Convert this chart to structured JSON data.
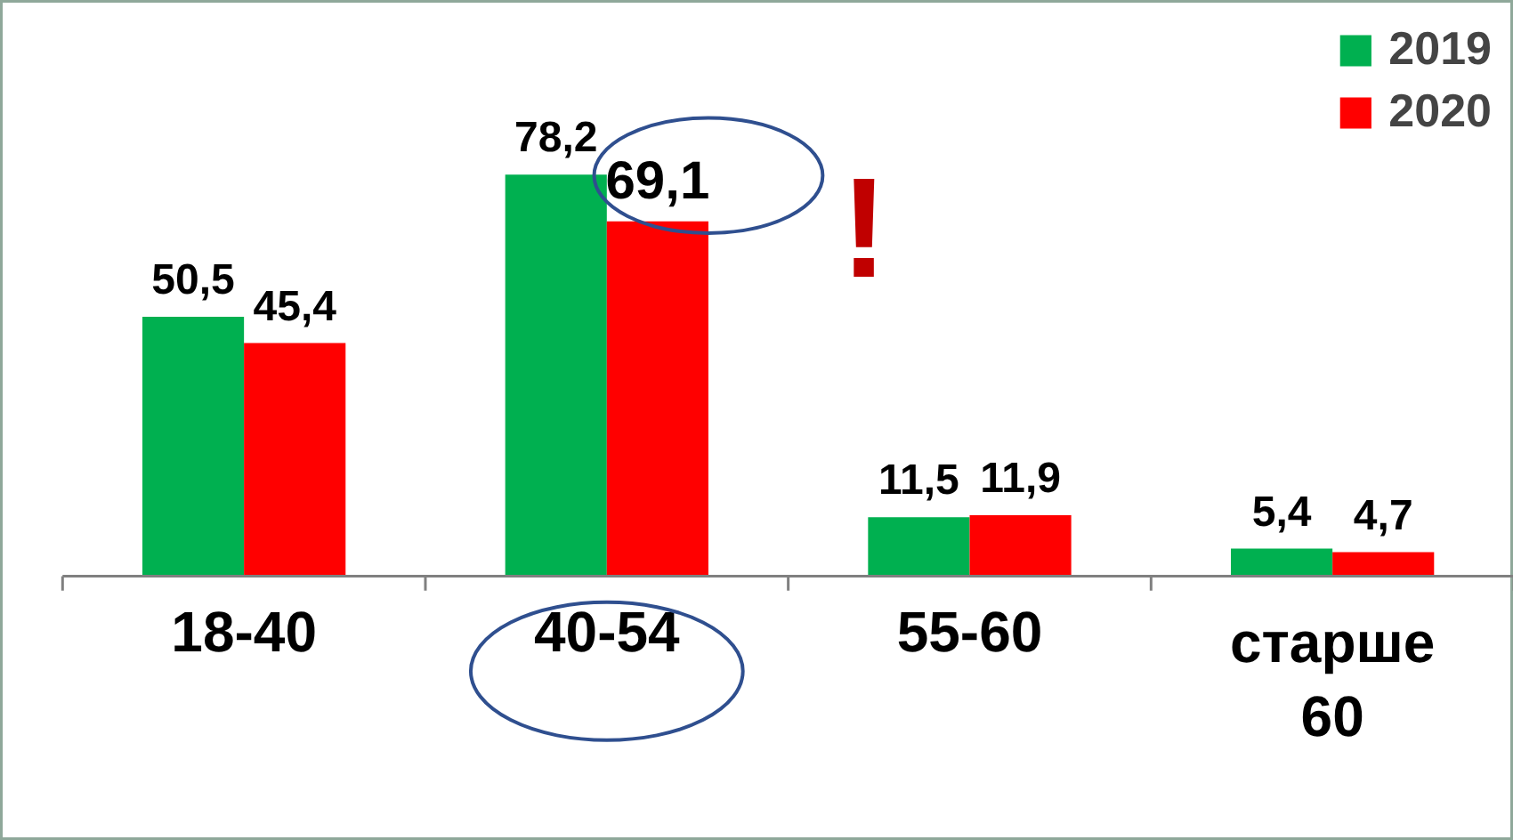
{
  "chart_data": {
    "type": "bar",
    "categories": [
      "18-40",
      "40-54",
      "55-60",
      "старше 60"
    ],
    "series": [
      {
        "name": "2019",
        "color": "#00b050",
        "values": [
          50.5,
          78.2,
          11.5,
          5.4
        ],
        "value_labels": [
          "50,5",
          "78,2",
          "11,5",
          "5,4"
        ]
      },
      {
        "name": "2020",
        "color": "#ff0000",
        "values": [
          45.4,
          69.1,
          11.9,
          4.7
        ],
        "value_labels": [
          "45,4",
          "69,1",
          "11,9",
          "4,7"
        ]
      }
    ],
    "ylim": [
      0,
      112
    ],
    "tick_labels": "x",
    "legend": "top right",
    "grid": false,
    "annotations": [
      "!"
    ]
  }
}
